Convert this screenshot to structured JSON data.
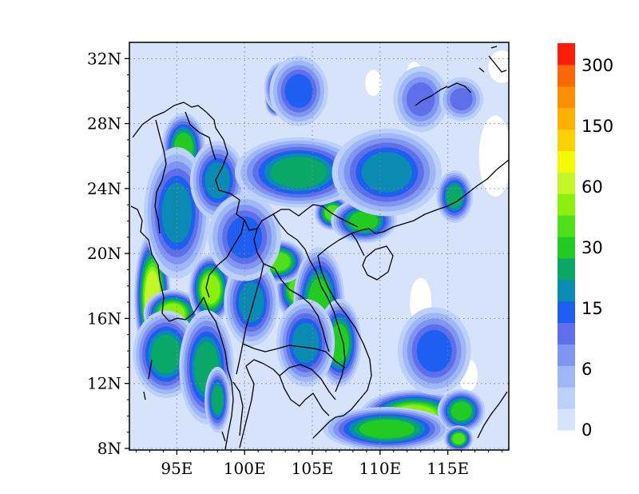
{
  "chart_data": {
    "type": "heatmap",
    "x_axis": {
      "range": [
        91.5,
        119.5
      ],
      "ticks": [
        95,
        100,
        105,
        110,
        115
      ],
      "tick_labels": [
        "95E",
        "100E",
        "105E",
        "110E",
        "115E"
      ]
    },
    "y_axis": {
      "range": [
        7.9,
        33.0
      ],
      "ticks": [
        8,
        12,
        16,
        20,
        24,
        28,
        32
      ],
      "tick_labels": [
        "8N",
        "12N",
        "16N",
        "20N",
        "24N",
        "28N",
        "32N"
      ]
    },
    "grid": "dotted",
    "colorbar": {
      "labels": [
        "0",
        "6",
        "15",
        "30",
        "60",
        "150",
        "300"
      ],
      "colors": [
        "#d7e3fb",
        "#bcd0f9",
        "#9fb6f7",
        "#7f95f1",
        "#5f6fe9",
        "#1e5ff2",
        "#0b8bb2",
        "#0aa867",
        "#22cb22",
        "#4fe01a",
        "#8cef0e",
        "#c3f527",
        "#f5fa02",
        "#fcd101",
        "#fbb002",
        "#fc8e04",
        "#fb6705",
        "#fb1d08"
      ]
    },
    "features": [
      {
        "lon": 113.5,
        "lat": 10.1,
        "level": 13,
        "sx": 1.6,
        "sy": 0.7
      },
      {
        "lon": 112.5,
        "lat": 10.0,
        "level": 10,
        "sx": 3.0,
        "sy": 1.2
      },
      {
        "lon": 110.5,
        "lat": 9.2,
        "level": 8,
        "sx": 3.5,
        "sy": 1.0
      },
      {
        "lon": 116.0,
        "lat": 10.3,
        "level": 8,
        "sx": 1.3,
        "sy": 1.0
      },
      {
        "lon": 115.8,
        "lat": 8.6,
        "level": 9,
        "sx": 0.8,
        "sy": 0.6
      },
      {
        "lon": 93.2,
        "lat": 17.3,
        "level": 11,
        "sx": 1.0,
        "sy": 3.0
      },
      {
        "lon": 94.7,
        "lat": 16.3,
        "level": 10,
        "sx": 1.6,
        "sy": 1.1
      },
      {
        "lon": 97.5,
        "lat": 17.8,
        "level": 10,
        "sx": 1.2,
        "sy": 1.6
      },
      {
        "lon": 94.2,
        "lat": 13.8,
        "level": 7,
        "sx": 1.8,
        "sy": 2.0
      },
      {
        "lon": 97.2,
        "lat": 13.0,
        "level": 7,
        "sx": 1.5,
        "sy": 2.6
      },
      {
        "lon": 95.5,
        "lat": 26.5,
        "level": 8,
        "sx": 1.2,
        "sy": 1.6
      },
      {
        "lon": 95.0,
        "lat": 22.5,
        "level": 6,
        "sx": 1.8,
        "sy": 3.0
      },
      {
        "lon": 98.0,
        "lat": 24.5,
        "level": 6,
        "sx": 1.5,
        "sy": 1.8
      },
      {
        "lon": 102.3,
        "lat": 29.5,
        "level": 10,
        "sx": 0.6,
        "sy": 0.8
      },
      {
        "lon": 102.8,
        "lat": 30.2,
        "level": 8,
        "sx": 1.0,
        "sy": 1.2
      },
      {
        "lon": 104.0,
        "lat": 17.8,
        "level": 9,
        "sx": 1.3,
        "sy": 1.5
      },
      {
        "lon": 102.5,
        "lat": 19.5,
        "level": 9,
        "sx": 1.5,
        "sy": 1.0
      },
      {
        "lon": 105.5,
        "lat": 17.0,
        "level": 8,
        "sx": 1.4,
        "sy": 2.5
      },
      {
        "lon": 106.5,
        "lat": 22.5,
        "level": 9,
        "sx": 1.0,
        "sy": 0.8
      },
      {
        "lon": 108.8,
        "lat": 22.0,
        "level": 8,
        "sx": 1.8,
        "sy": 1.0
      },
      {
        "lon": 109.7,
        "lat": 24.5,
        "level": 9,
        "sx": 0.7,
        "sy": 0.9
      },
      {
        "lon": 107.0,
        "lat": 14.5,
        "level": 8,
        "sx": 1.2,
        "sy": 2.0
      },
      {
        "lon": 104.5,
        "lat": 14.5,
        "level": 6,
        "sx": 1.6,
        "sy": 2.0
      },
      {
        "lon": 100.5,
        "lat": 17.0,
        "level": 6,
        "sx": 1.5,
        "sy": 2.0
      },
      {
        "lon": 100.0,
        "lat": 21.0,
        "level": 5,
        "sx": 2.0,
        "sy": 2.0
      },
      {
        "lon": 104.0,
        "lat": 25.0,
        "level": 7,
        "sx": 3.5,
        "sy": 1.6
      },
      {
        "lon": 110.5,
        "lat": 25.0,
        "level": 6,
        "sx": 3.0,
        "sy": 2.0
      },
      {
        "lon": 115.5,
        "lat": 23.5,
        "level": 7,
        "sx": 1.0,
        "sy": 1.2
      },
      {
        "lon": 114.0,
        "lat": 14.0,
        "level": 5,
        "sx": 2.0,
        "sy": 2.0
      },
      {
        "lon": 98.0,
        "lat": 11.0,
        "level": 7,
        "sx": 0.7,
        "sy": 1.5
      },
      {
        "lon": 113.0,
        "lat": 29.5,
        "level": 4,
        "sx": 1.5,
        "sy": 1.5
      },
      {
        "lon": 116.0,
        "lat": 29.5,
        "level": 4,
        "sx": 1.2,
        "sy": 1.0
      },
      {
        "lon": 104.0,
        "lat": 30.0,
        "level": 5,
        "sx": 1.6,
        "sy": 1.6
      }
    ]
  }
}
